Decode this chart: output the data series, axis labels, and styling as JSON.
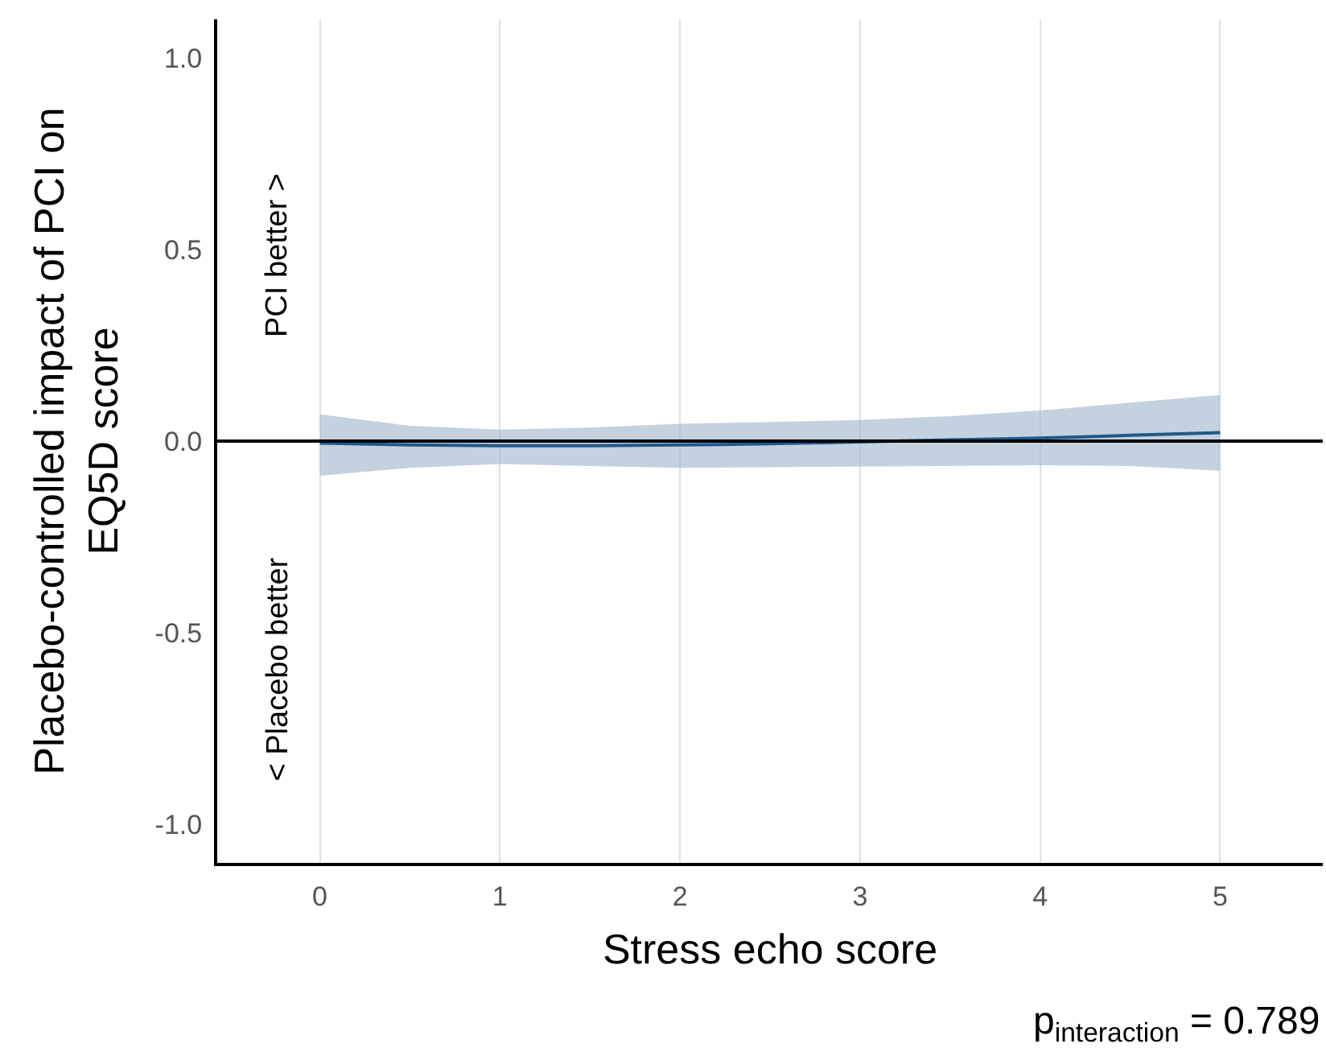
{
  "chart_data": {
    "type": "line",
    "xlabel": "Stress echo score",
    "ylabel": "Placebo-controlled impact of PCI on EQ5D score",
    "x": [
      0,
      0.5,
      1,
      1.5,
      2,
      2.5,
      3,
      3.5,
      4,
      4.5,
      5
    ],
    "series": [
      {
        "color": "#1f5a8a",
        "values": [
          -0.005,
          -0.01,
          -0.012,
          -0.012,
          -0.01,
          -0.007,
          -0.002,
          0.003,
          0.008,
          0.015,
          0.022
        ],
        "lower": [
          -0.09,
          -0.07,
          -0.06,
          -0.065,
          -0.07,
          -0.07,
          -0.068,
          -0.065,
          -0.063,
          -0.065,
          -0.077
        ],
        "upper": [
          0.07,
          0.04,
          0.03,
          0.035,
          0.045,
          0.05,
          0.055,
          0.065,
          0.08,
          0.1,
          0.12
        ]
      }
    ],
    "xlim": [
      -0.57,
      5.57
    ],
    "ylim": [
      -1.1,
      1.1
    ],
    "xticks": [
      0,
      1,
      2,
      3,
      4,
      5
    ],
    "yticks": [
      {
        "value": -1,
        "label": "-1.0"
      },
      {
        "value": -0.5,
        "label": "-0.5"
      },
      {
        "value": 0,
        "label": "0.0"
      },
      {
        "value": 0.5,
        "label": "0.5"
      },
      {
        "value": 1,
        "label": "1.0"
      }
    ],
    "grid": "x",
    "ref_lines": [
      {
        "axis": "y",
        "value": 0,
        "color": "#000000"
      }
    ],
    "annotations": [
      "PCI better >",
      "< Placebo better",
      "p$_{interaction}$ = 0.789"
    ]
  }
}
